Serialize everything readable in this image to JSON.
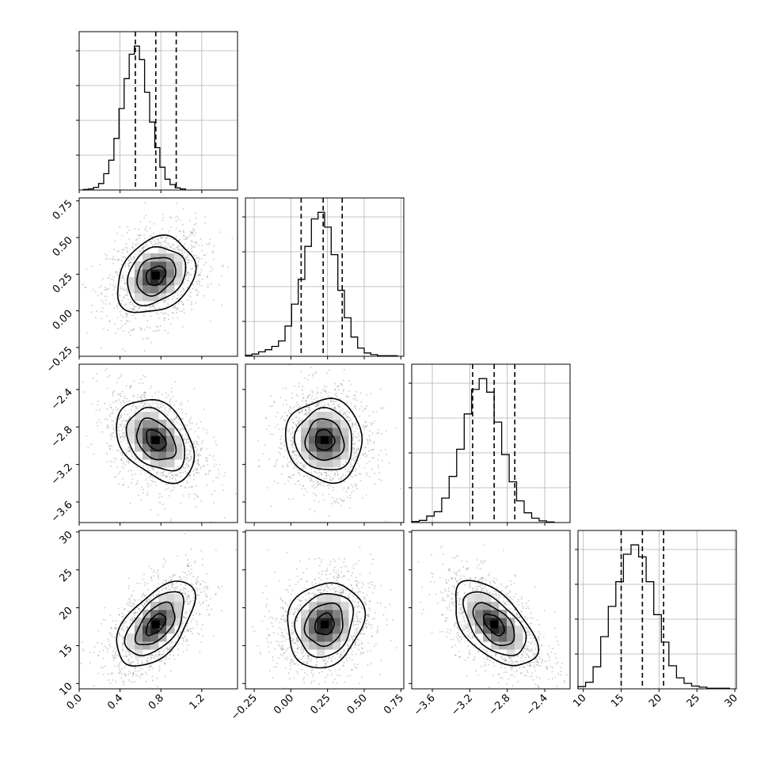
{
  "chart_data": {
    "type": "corner",
    "colors": {
      "line": "#000000",
      "grid": "#b0b0b0",
      "scatter": "#7f7f7f"
    },
    "parameters": [
      {
        "index": 0,
        "range": [
          0.0,
          1.55
        ],
        "ticks": [
          "0.0",
          "0.4",
          "0.8",
          "1.2"
        ],
        "tick_values": [
          0.0,
          0.4,
          0.8,
          1.2
        ],
        "quantiles": [
          0.55,
          0.75,
          0.95
        ]
      },
      {
        "index": 1,
        "range": [
          -0.31,
          0.77
        ],
        "ticks": [
          "−0.25",
          "0.00",
          "0.25",
          "0.50",
          "0.75"
        ],
        "tick_values": [
          -0.25,
          0.0,
          0.25,
          0.5,
          0.75
        ],
        "quantiles": [
          0.07,
          0.22,
          0.35
        ]
      },
      {
        "index": 2,
        "range": [
          -3.82,
          -2.13
        ],
        "ticks": [
          "−3.6",
          "−3.2",
          "−2.8",
          "−2.4"
        ],
        "tick_values": [
          -3.6,
          -3.2,
          -2.8,
          -2.4
        ],
        "quantiles": [
          -3.17,
          -2.94,
          -2.72
        ]
      },
      {
        "index": 3,
        "range": [
          9.3,
          30.2
        ],
        "ticks": [
          "10",
          "15",
          "20",
          "25",
          "30"
        ],
        "tick_values": [
          10,
          15,
          20,
          25,
          30
        ],
        "quantiles": [
          15.0,
          17.8,
          20.6
        ]
      }
    ],
    "y_axis_ticks": [
      {
        "row": 1,
        "ticks": [
          "−0.25",
          "0.00",
          "0.25",
          "0.50",
          "0.75"
        ]
      },
      {
        "row": 2,
        "ticks": [
          "−3.6",
          "−3.2",
          "−2.8",
          "−2.4"
        ]
      },
      {
        "row": 3,
        "ticks": [
          "10",
          "15",
          "20",
          "25",
          "30"
        ]
      }
    ],
    "histograms": [
      {
        "param": 0,
        "bin_start": 0.04,
        "bin_width": 0.05,
        "counts": [
          1,
          2,
          5,
          12,
          30,
          55,
          95,
          150,
          205,
          250,
          265,
          240,
          180,
          125,
          78,
          42,
          20,
          10,
          4,
          2
        ]
      },
      {
        "param": 1,
        "bin_start": -0.31,
        "bin_width": 0.045,
        "counts": [
          2,
          4,
          8,
          12,
          18,
          28,
          55,
          95,
          140,
          200,
          250,
          262,
          235,
          185,
          120,
          70,
          35,
          15,
          6,
          3,
          1,
          1,
          1
        ]
      },
      {
        "param": 2,
        "bin_start": -3.82,
        "bin_width": 0.08,
        "counts": [
          2,
          4,
          12,
          20,
          45,
          85,
          135,
          200,
          245,
          265,
          240,
          185,
          125,
          75,
          40,
          18,
          8,
          3,
          1
        ]
      },
      {
        "param": 3,
        "bin_start": 9.3,
        "bin_width": 1.0,
        "counts": [
          4,
          12,
          40,
          95,
          150,
          195,
          245,
          262,
          240,
          195,
          135,
          85,
          42,
          20,
          10,
          5,
          3,
          1,
          1,
          1
        ]
      }
    ],
    "pairs": [
      {
        "x_param": 0,
        "y_param": 1,
        "center": [
          0.75,
          0.24
        ],
        "sigma": [
          0.19,
          0.13
        ],
        "rho": 0.25
      },
      {
        "x_param": 0,
        "y_param": 2,
        "center": [
          0.75,
          -2.94
        ],
        "sigma": [
          0.19,
          0.22
        ],
        "rho": -0.35
      },
      {
        "x_param": 1,
        "y_param": 2,
        "center": [
          0.23,
          -2.94
        ],
        "sigma": [
          0.13,
          0.22
        ],
        "rho": -0.05
      },
      {
        "x_param": 0,
        "y_param": 3,
        "center": [
          0.75,
          17.8
        ],
        "sigma": [
          0.19,
          2.8
        ],
        "rho": 0.55
      },
      {
        "x_param": 1,
        "y_param": 3,
        "center": [
          0.23,
          17.8
        ],
        "sigma": [
          0.13,
          2.8
        ],
        "rho": 0.15
      },
      {
        "x_param": 2,
        "y_param": 3,
        "center": [
          -2.94,
          17.8
        ],
        "sigma": [
          0.22,
          2.8
        ],
        "rho": -0.55
      }
    ],
    "contour_levels_sigma": [
      0.5,
      1.0,
      1.5,
      2.0
    ],
    "grid": true,
    "legend": "none"
  }
}
